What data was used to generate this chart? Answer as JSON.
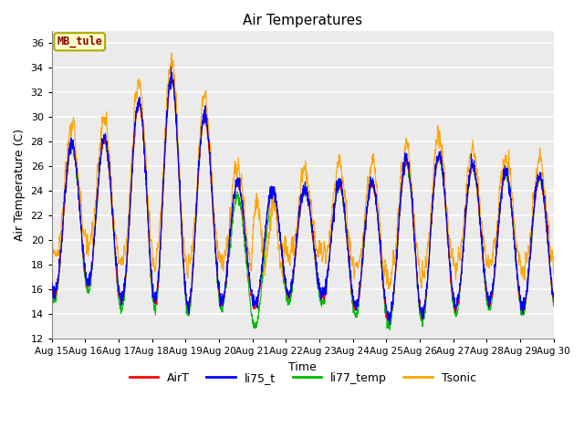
{
  "title": "Air Temperatures",
  "xlabel": "Time",
  "ylabel": "Air Temperature (C)",
  "ylim": [
    12,
    37
  ],
  "yticks": [
    12,
    14,
    16,
    18,
    20,
    22,
    24,
    26,
    28,
    30,
    32,
    34,
    36
  ],
  "start_day": 15,
  "end_day": 30,
  "n_days": 15,
  "annotation_text": "MB_tule",
  "annotation_color": "#8B0000",
  "annotation_bg": "#FFFFCC",
  "annotation_border": "#AAAA00",
  "series_colors": {
    "AirT": "#FF0000",
    "li75_t": "#0000FF",
    "li77_temp": "#00BB00",
    "Tsonic": "#FFA500"
  },
  "series_linewidth": 0.8,
  "background_color": "#EBEBEB",
  "grid_color": "#FFFFFF",
  "fig_bg": "#FFFFFF"
}
